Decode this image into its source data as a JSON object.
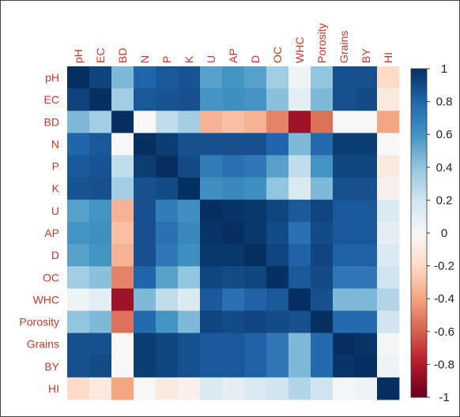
{
  "chart_data": {
    "type": "heatmap",
    "variables": [
      "pH",
      "EC",
      "BD",
      "N",
      "P",
      "K",
      "U",
      "AP",
      "D",
      "OC",
      "WHC",
      "Porosity",
      "Grains",
      "BY",
      "HI"
    ],
    "label_color": "#c0392b",
    "colorscale": {
      "min": -1,
      "max": 1,
      "stops": [
        {
          "value": -1,
          "color": "#67001f"
        },
        {
          "value": -0.8,
          "color": "#b2182b"
        },
        {
          "value": -0.6,
          "color": "#d6604d"
        },
        {
          "value": -0.4,
          "color": "#f4a582"
        },
        {
          "value": -0.2,
          "color": "#fddbc7"
        },
        {
          "value": 0,
          "color": "#f7f7f7"
        },
        {
          "value": 0.2,
          "color": "#d1e5f0"
        },
        {
          "value": 0.4,
          "color": "#92c5de"
        },
        {
          "value": 0.6,
          "color": "#4393c3"
        },
        {
          "value": 0.8,
          "color": "#2166ac"
        },
        {
          "value": 1,
          "color": "#053061"
        }
      ],
      "ticks": [
        "1",
        "0.8",
        "0.6",
        "0.4",
        "0.2",
        "0",
        "-0.2",
        "-0.4",
        "-0.6",
        "-0.8",
        "-1"
      ]
    },
    "matrix": [
      [
        1,
        0.93,
        0.45,
        0.8,
        0.85,
        0.87,
        0.55,
        0.6,
        0.55,
        0.35,
        0.05,
        0.4,
        0.88,
        0.88,
        -0.2
      ],
      [
        0.93,
        1,
        0.35,
        0.85,
        0.87,
        0.88,
        0.6,
        0.62,
        0.6,
        0.42,
        0.1,
        0.45,
        0.88,
        0.9,
        -0.1
      ],
      [
        0.45,
        0.35,
        1,
        0,
        0.25,
        0.35,
        -0.35,
        -0.3,
        -0.35,
        -0.5,
        -0.85,
        -0.55,
        0,
        0,
        -0.4
      ],
      [
        0.8,
        0.85,
        0,
        1,
        0.95,
        0.88,
        0.88,
        0.88,
        0.88,
        0.8,
        0.45,
        0.78,
        0.95,
        0.95,
        0
      ],
      [
        0.85,
        0.87,
        0.25,
        0.95,
        1,
        0.9,
        0.7,
        0.75,
        0.72,
        0.55,
        0.25,
        0.6,
        0.92,
        0.92,
        -0.1
      ],
      [
        0.87,
        0.88,
        0.35,
        0.88,
        0.9,
        1,
        0.62,
        0.65,
        0.62,
        0.4,
        0.15,
        0.45,
        0.88,
        0.88,
        -0.05
      ],
      [
        0.55,
        0.6,
        -0.35,
        0.88,
        0.7,
        0.62,
        1,
        0.98,
        0.97,
        0.92,
        0.85,
        0.92,
        0.85,
        0.85,
        0.15
      ],
      [
        0.6,
        0.62,
        -0.3,
        0.88,
        0.75,
        0.65,
        0.98,
        1,
        0.97,
        0.9,
        0.75,
        0.9,
        0.85,
        0.85,
        0.1
      ],
      [
        0.55,
        0.6,
        -0.35,
        0.88,
        0.72,
        0.62,
        0.97,
        0.97,
        1,
        0.92,
        0.82,
        0.92,
        0.82,
        0.82,
        0.15
      ],
      [
        0.35,
        0.42,
        -0.5,
        0.8,
        0.55,
        0.4,
        0.92,
        0.9,
        0.92,
        1,
        0.85,
        0.9,
        0.72,
        0.72,
        0.2
      ],
      [
        0.05,
        0.1,
        -0.85,
        0.45,
        0.25,
        0.15,
        0.85,
        0.75,
        0.82,
        0.85,
        1,
        0.88,
        0.45,
        0.45,
        0.3
      ],
      [
        0.4,
        0.45,
        -0.55,
        0.78,
        0.6,
        0.45,
        0.92,
        0.9,
        0.92,
        0.9,
        0.88,
        1,
        0.78,
        0.78,
        0.2
      ],
      [
        0.88,
        0.88,
        0,
        0.95,
        0.92,
        0.88,
        0.85,
        0.85,
        0.82,
        0.72,
        0.45,
        0.78,
        1,
        0.98,
        0.02
      ],
      [
        0.88,
        0.9,
        0,
        0.95,
        0.92,
        0.88,
        0.85,
        0.85,
        0.82,
        0.72,
        0.45,
        0.78,
        0.98,
        1,
        0.05
      ],
      [
        -0.2,
        -0.1,
        -0.4,
        0,
        -0.1,
        -0.05,
        0.15,
        0.1,
        0.15,
        0.2,
        0.3,
        0.2,
        0.02,
        0.05,
        1
      ]
    ]
  }
}
